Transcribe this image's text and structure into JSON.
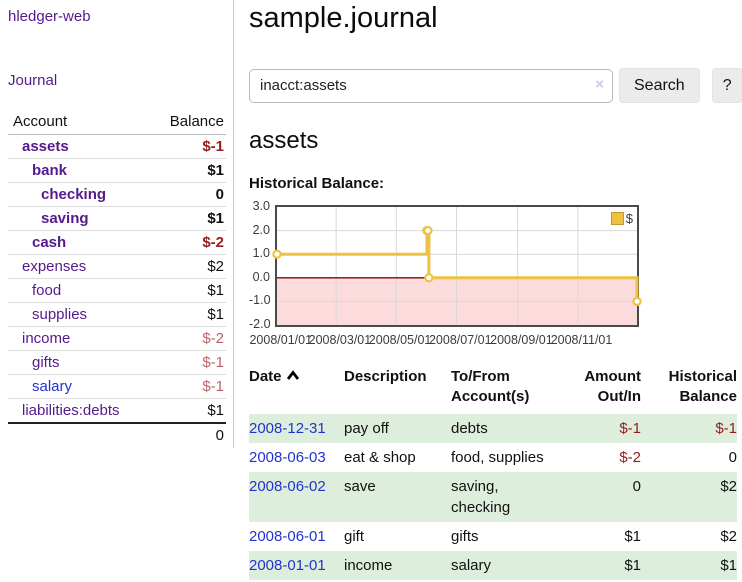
{
  "sidebar": {
    "app_title": "hledger-web",
    "journal_label": "Journal",
    "accounts_table": {
      "headers": {
        "account": "Account",
        "balance": "Balance"
      },
      "rows": [
        {
          "name": "assets",
          "balance": "$-1",
          "depth": 1,
          "bold": true,
          "balance_style": "neg-strong"
        },
        {
          "name": "bank",
          "balance": "$1",
          "depth": 2,
          "bold": true,
          "balance_style": "normal"
        },
        {
          "name": "checking",
          "balance": "0",
          "depth": 3,
          "bold": true,
          "balance_style": "normal"
        },
        {
          "name": "saving",
          "balance": "$1",
          "depth": 3,
          "bold": true,
          "balance_style": "normal"
        },
        {
          "name": "cash",
          "balance": "$-2",
          "depth": 2,
          "bold": true,
          "balance_style": "neg-strong"
        },
        {
          "name": "expenses",
          "balance": "$2",
          "depth": 1,
          "bold": false,
          "balance_style": "normal"
        },
        {
          "name": "food",
          "balance": "$1",
          "depth": 2,
          "bold": false,
          "balance_style": "normal"
        },
        {
          "name": "supplies",
          "balance": "$1",
          "depth": 2,
          "bold": false,
          "balance_style": "normal"
        },
        {
          "name": "income",
          "balance": "$-2",
          "depth": 1,
          "bold": false,
          "balance_style": "neg-soft"
        },
        {
          "name": "gifts",
          "balance": "$-1",
          "depth": 2,
          "bold": false,
          "balance_style": "neg-soft"
        },
        {
          "name": "salary",
          "balance": "$-1",
          "depth": 2,
          "bold": false,
          "balance_style": "neg-soft",
          "link_style": "blue"
        },
        {
          "name": "liabilities:debts",
          "balance": "$1",
          "depth": 1,
          "bold": false,
          "balance_style": "normal"
        }
      ],
      "total": "0"
    }
  },
  "main": {
    "title": "sample.journal",
    "search": {
      "value": "inacct:assets",
      "clear_icon": "×",
      "button_label": "Search",
      "help_label": "?"
    },
    "section_title": "assets",
    "chart_label": "Historical Balance:"
  },
  "chart_data": {
    "type": "line",
    "step": true,
    "title": "Historical Balance",
    "series": [
      {
        "name": "$",
        "color": "#edc240",
        "points": [
          [
            "2008-01-01",
            1
          ],
          [
            "2008-06-01",
            2
          ],
          [
            "2008-06-02",
            2
          ],
          [
            "2008-06-03",
            0
          ],
          [
            "2008-12-31",
            -1
          ]
        ]
      }
    ],
    "xlim": [
      "2008-01-01",
      "2008-12-31"
    ],
    "ylim": [
      -2,
      3
    ],
    "x_ticks": [
      "2008/01/01",
      "2008/03/01",
      "2008/05/01",
      "2008/07/01",
      "2008/09/01",
      "2008/11/01"
    ],
    "y_ticks": [
      "3.0",
      "2.0",
      "1.0",
      "0.0",
      "-1.0",
      "-2.0"
    ],
    "grid": true,
    "legend_position": "top-right",
    "negative_fill": "#fbdbdb",
    "zero_line_color": "#8b0000",
    "grid_color": "#d9d9d9"
  },
  "register_table": {
    "headers": {
      "date": "Date",
      "description": "Description",
      "accounts_line1": "To/From",
      "accounts_line2": "Account(s)",
      "amount_line1": "Amount",
      "amount_line2": "Out/In",
      "balance_line1": "Historical",
      "balance_line2": "Balance"
    },
    "rows": [
      {
        "date": "2008-12-31",
        "description": "pay off",
        "accounts": "debts",
        "amount": "$-1",
        "amount_neg": true,
        "balance": "$-1",
        "balance_neg": true
      },
      {
        "date": "2008-06-03",
        "description": "eat & shop",
        "accounts": "food, supplies",
        "amount": "$-2",
        "amount_neg": true,
        "balance": "0",
        "balance_neg": false
      },
      {
        "date": "2008-06-02",
        "description": "save",
        "accounts": "saving, checking",
        "amount": "0",
        "amount_neg": false,
        "balance": "$2",
        "balance_neg": false
      },
      {
        "date": "2008-06-01",
        "description": "gift",
        "accounts": "gifts",
        "amount": "$1",
        "amount_neg": false,
        "balance": "$2",
        "balance_neg": false
      },
      {
        "date": "2008-01-01",
        "description": "income",
        "accounts": "salary",
        "amount": "$1",
        "amount_neg": false,
        "balance": "$1",
        "balance_neg": false
      }
    ]
  }
}
